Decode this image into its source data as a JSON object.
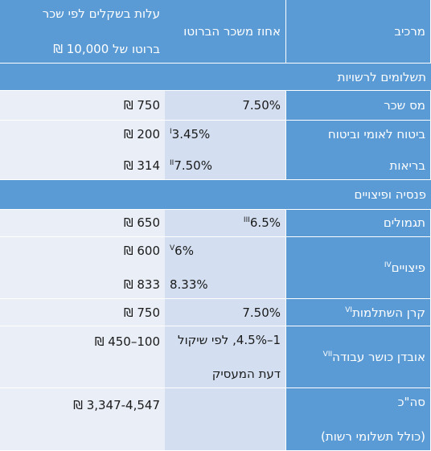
{
  "colors": {
    "header_bg": "#5b9bd5",
    "section_bg": "#5b9bd5",
    "name_cell_bg": "#5b9bd5",
    "pct_cell_bg": "#d3dff0",
    "cost_cell_bg": "#eaeff7",
    "header_text": "#ffffff"
  },
  "header": {
    "component": "מרכיב",
    "percent": "אחוז משכר הברוטו",
    "cost_line1": "עלות בשקלים לפי שכר",
    "cost_line2": "ברוטו של 10,000 ₪"
  },
  "sections": {
    "authorities": "תשלומים לרשויות",
    "pension": "פנסיה ופיצויים"
  },
  "rows": {
    "income_tax": {
      "name": "מס שכר",
      "pct": "7.50%",
      "cost": "750 ₪"
    },
    "national_insurance": {
      "name_line1": "ביטוח לאומי וביטוח",
      "name_line2": "בריאות",
      "pct1": "3.45%",
      "pct1_note": "I",
      "pct2": "7.50%",
      "pct2_note": "II",
      "cost1": "200 ₪",
      "cost2": "314 ₪"
    },
    "benefits": {
      "name": "תגמולים",
      "pct": "6.5%",
      "pct_note": "III",
      "cost": "650 ₪"
    },
    "severance": {
      "name": "פיצויים",
      "name_note": "IV",
      "pct1": "6%",
      "pct1_note": "V",
      "pct2": "8.33%",
      "cost1": "600 ₪",
      "cost2": "833 ₪"
    },
    "study_fund": {
      "name": "קרן השתלמות",
      "name_note": "VI",
      "pct": "7.50%",
      "cost": "750 ₪"
    },
    "work_capacity": {
      "name": "אובדן כושר עבודה",
      "name_note": "VII",
      "pct_line1": "1–4.5%, לפי שיקול",
      "pct_line2": "דעת המעסיק",
      "cost": "100–450 ₪"
    },
    "total": {
      "name_line1": "סה\"כ",
      "name_line2": "(כולל תשלומי רשות)",
      "cost": "3,347-4,547 ₪"
    }
  }
}
